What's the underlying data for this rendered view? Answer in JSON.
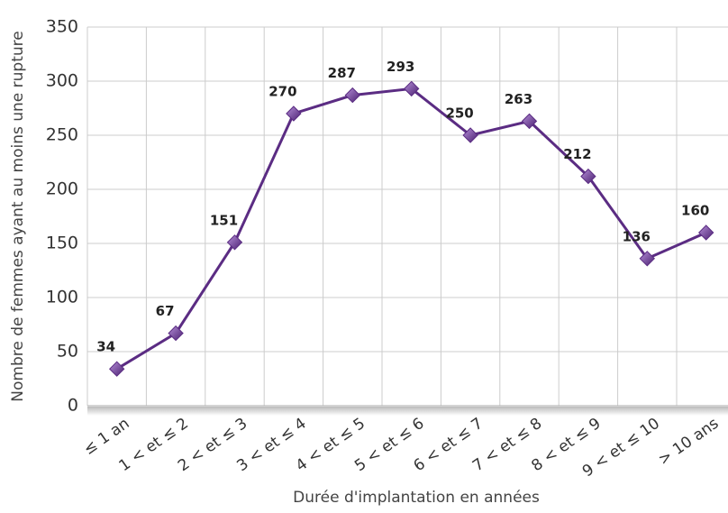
{
  "chart_data": {
    "type": "line",
    "x_label": "Durée d'implantation en années",
    "y_label": "Nombre de femmes ayant au moins une rupture",
    "categories": [
      "≤ 1 an",
      "1 < et ≤ 2",
      "2 < et ≤ 3",
      "3 < et ≤ 4",
      "4 < et ≤ 5",
      "5 < et ≤ 6",
      "6 < et ≤ 7",
      "7 < et ≤ 8",
      "8 < et ≤ 9",
      "9 < et ≤ 10",
      "> 10 ans"
    ],
    "series": [
      {
        "name": "Nombre de femmes",
        "color": "#5b2c83",
        "values": [
          34,
          67,
          151,
          270,
          287,
          293,
          250,
          263,
          212,
          136,
          160
        ]
      }
    ],
    "ylim": [
      0,
      350
    ],
    "yticks": [
      0,
      50,
      100,
      150,
      200,
      250,
      300,
      350
    ],
    "grid": true
  }
}
